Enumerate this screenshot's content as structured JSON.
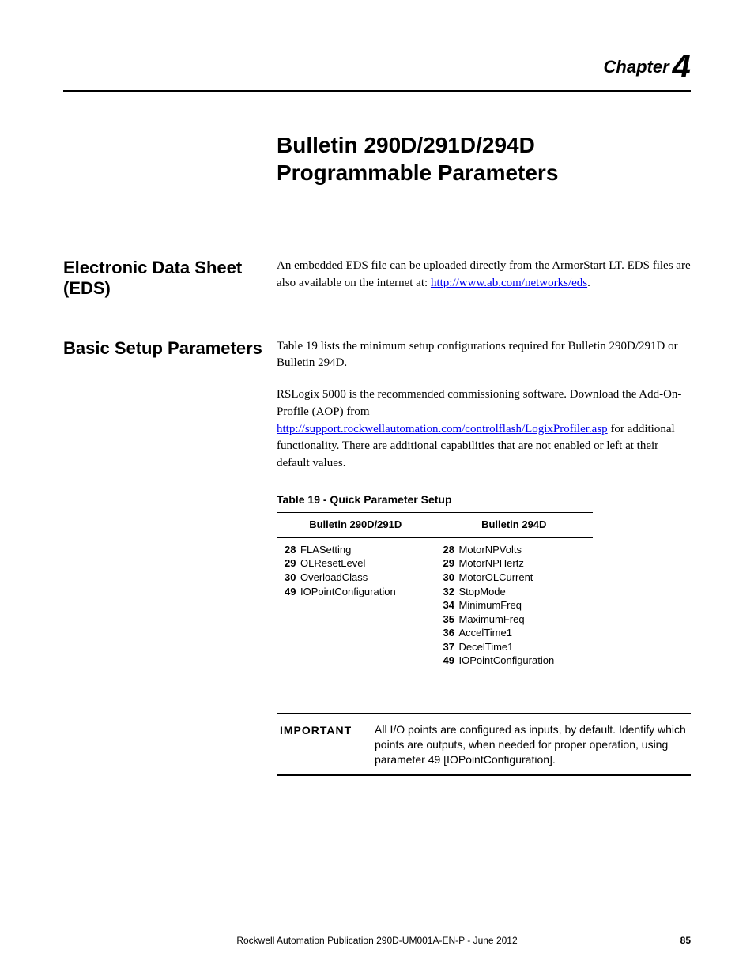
{
  "chapter": {
    "label": "Chapter",
    "number": "4"
  },
  "title": {
    "line1": "Bulletin 290D/291D/294D",
    "line2": "Programmable Parameters"
  },
  "sections": {
    "eds": {
      "heading": "Electronic Data Sheet (EDS)",
      "para1_a": "An embedded EDS file can be uploaded directly from the ArmorStart LT. EDS files are also available on the internet at: ",
      "link1": "http://www.ab.com/networks/eds",
      "para1_b": "."
    },
    "basic": {
      "heading": "Basic Setup Parameters",
      "para1": "Table 19 lists the minimum setup configurations required for Bulletin 290D/291D or Bulletin 294D.",
      "para2_a": "RSLogix 5000 is the recommended commissioning software. Download the Add-On-Profile (AOP) from ",
      "link2": "http://support.rockwellautomation.com/controlflash/LogixProfiler.asp",
      "para2_b": " for additional functionality. There are additional capabilities that are not enabled or left at their default values.",
      "table_caption": "Table 19 - Quick Parameter Setup",
      "table": {
        "headers": [
          "Bulletin 290D/291D",
          "Bulletin 294D"
        ],
        "col1": [
          {
            "num": "28",
            "name": "FLASetting"
          },
          {
            "num": "29",
            "name": "OLResetLevel"
          },
          {
            "num": "30",
            "name": "OverloadClass"
          },
          {
            "num": "49",
            "name": "IOPointConfiguration"
          }
        ],
        "col2": [
          {
            "num": "28",
            "name": "MotorNPVolts"
          },
          {
            "num": "29",
            "name": "MotorNPHertz"
          },
          {
            "num": "30",
            "name": "MotorOLCurrent"
          },
          {
            "num": "32",
            "name": "StopMode"
          },
          {
            "num": "34",
            "name": "MinimumFreq"
          },
          {
            "num": "35",
            "name": "MaximumFreq"
          },
          {
            "num": "36",
            "name": "AccelTime1"
          },
          {
            "num": "37",
            "name": "DecelTime1"
          },
          {
            "num": "49",
            "name": "IOPointConfiguration"
          }
        ]
      },
      "important": {
        "label": "IMPORTANT",
        "text": "All I/O points are configured as inputs, by default. Identify which points are outputs, when needed for proper operation, using parameter 49 [IOPointConfiguration]."
      }
    }
  },
  "footer": {
    "text": "Rockwell Automation Publication 290D-UM001A-EN-P - June 2012",
    "page": "85"
  }
}
